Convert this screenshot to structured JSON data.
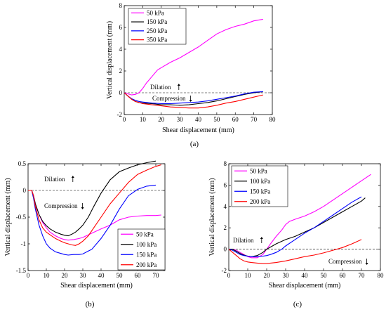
{
  "chart_data": [
    {
      "type": "line",
      "panel_label": "(a)",
      "xlabel": "Shear displacement (mm)",
      "ylabel": "Vertical displacement (mm)",
      "xlim": [
        0,
        80
      ],
      "ylim": [
        -2,
        8
      ],
      "xticks": [
        "0",
        "10",
        "20",
        "30",
        "40",
        "50",
        "60",
        "70",
        "80"
      ],
      "yticks": [
        "-2",
        "0",
        "2",
        "4",
        "6",
        "8"
      ],
      "zero_line": "dashed",
      "legend_position": "top-left",
      "annotations": [
        {
          "text": "Dilation",
          "arrow": "up",
          "at": [
            38,
            0.6
          ]
        },
        {
          "text": "Compression",
          "arrow": "down",
          "at": [
            38,
            -0.55
          ]
        }
      ],
      "series": [
        {
          "name": "50 kPa",
          "color": "#ff00ff",
          "x": [
            0,
            2,
            4,
            6,
            8,
            10,
            12,
            15,
            18,
            20,
            25,
            30,
            35,
            40,
            45,
            50,
            55,
            60,
            65,
            70,
            75
          ],
          "y": [
            0,
            -0.1,
            -0.2,
            -0.15,
            0,
            0.4,
            0.9,
            1.5,
            2.1,
            2.3,
            2.8,
            3.2,
            3.7,
            4.2,
            4.8,
            5.4,
            5.8,
            6.1,
            6.3,
            6.6,
            6.75
          ]
        },
        {
          "name": "150 kPa",
          "color": "#000000",
          "x": [
            0,
            2,
            4,
            6,
            8,
            10,
            15,
            20,
            25,
            30,
            35,
            40,
            45,
            50,
            55,
            60,
            65,
            70,
            75
          ],
          "y": [
            0,
            -0.3,
            -0.6,
            -0.8,
            -0.9,
            -0.95,
            -1.0,
            -1.1,
            -1.1,
            -1.15,
            -1.1,
            -1.0,
            -0.9,
            -0.75,
            -0.55,
            -0.35,
            -0.15,
            0.0,
            0.1
          ]
        },
        {
          "name": "250 kPa",
          "color": "#0000ff",
          "x": [
            0,
            2,
            4,
            6,
            8,
            10,
            15,
            20,
            25,
            30,
            35,
            40,
            45,
            50,
            55,
            60,
            65,
            70,
            75
          ],
          "y": [
            0,
            -0.3,
            -0.55,
            -0.7,
            -0.8,
            -0.85,
            -0.95,
            -1.0,
            -1.0,
            -0.95,
            -0.9,
            -0.85,
            -0.75,
            -0.6,
            -0.45,
            -0.3,
            -0.1,
            0.05,
            0.1
          ]
        },
        {
          "name": "350 kPa",
          "color": "#ff0000",
          "x": [
            0,
            2,
            4,
            6,
            8,
            10,
            15,
            20,
            25,
            30,
            35,
            40,
            45,
            50,
            55,
            60,
            65,
            70,
            75
          ],
          "y": [
            0,
            -0.3,
            -0.6,
            -0.8,
            -0.9,
            -1.0,
            -1.1,
            -1.2,
            -1.3,
            -1.35,
            -1.4,
            -1.4,
            -1.3,
            -1.15,
            -0.95,
            -0.8,
            -0.6,
            -0.4,
            -0.2
          ]
        }
      ]
    },
    {
      "type": "line",
      "panel_label": "(b)",
      "xlabel": "Shear displacement (mm)",
      "ylabel": "Vertical displacement (mm)",
      "xlim": [
        0,
        75
      ],
      "ylim": [
        -1.5,
        0.5
      ],
      "xticks": [
        "0",
        "10",
        "20",
        "30",
        "40",
        "50",
        "60",
        "70"
      ],
      "yticks": [
        "-1.5",
        "-1",
        "-0.5",
        "0",
        "0.5"
      ],
      "zero_line": "dashed",
      "legend_position": "bottom-right",
      "annotations": [
        {
          "text": "Dilation",
          "arrow": "up",
          "at": [
            5,
            0.2
          ]
        },
        {
          "text": "Compression",
          "arrow": "down",
          "at": [
            5,
            -0.2
          ]
        }
      ],
      "series": [
        {
          "name": "50 kPa",
          "color": "#ff00ff",
          "x": [
            0,
            1,
            2,
            3,
            4,
            6,
            8,
            10,
            12,
            15,
            18,
            20,
            22,
            25,
            28,
            30,
            35,
            40,
            45,
            50,
            55,
            60,
            65,
            70,
            73
          ],
          "y": [
            0,
            0,
            0,
            -0.1,
            -0.25,
            -0.45,
            -0.6,
            -0.7,
            -0.78,
            -0.85,
            -0.9,
            -0.92,
            -0.93,
            -0.92,
            -0.9,
            -0.88,
            -0.8,
            -0.72,
            -0.65,
            -0.55,
            -0.5,
            -0.48,
            -0.47,
            -0.47,
            -0.46
          ]
        },
        {
          "name": "100 kPa",
          "color": "#000000",
          "x": [
            0,
            1,
            2,
            3,
            4,
            6,
            8,
            10,
            12,
            15,
            18,
            20,
            22,
            24,
            26,
            28,
            30,
            33,
            36,
            40,
            45,
            50,
            55,
            60,
            65,
            70
          ],
          "y": [
            0,
            0,
            0,
            -0.1,
            -0.25,
            -0.45,
            -0.58,
            -0.66,
            -0.72,
            -0.78,
            -0.82,
            -0.84,
            -0.85,
            -0.82,
            -0.78,
            -0.72,
            -0.65,
            -0.5,
            -0.3,
            -0.05,
            0.2,
            0.35,
            0.42,
            0.48,
            0.52,
            0.55
          ]
        },
        {
          "name": "150 kPa",
          "color": "#0000ff",
          "x": [
            0,
            1,
            2,
            3,
            4,
            6,
            8,
            10,
            12,
            15,
            18,
            20,
            22,
            25,
            28,
            30,
            35,
            40,
            45,
            50,
            55,
            60,
            65,
            70
          ],
          "y": [
            0,
            0,
            0,
            -0.15,
            -0.35,
            -0.65,
            -0.85,
            -1.0,
            -1.08,
            -1.15,
            -1.18,
            -1.2,
            -1.21,
            -1.2,
            -1.2,
            -1.19,
            -1.1,
            -0.9,
            -0.65,
            -0.35,
            -0.1,
            0.02,
            0.08,
            0.1
          ]
        },
        {
          "name": "200 kPa",
          "color": "#ff0000",
          "x": [
            0,
            1,
            2,
            3,
            4,
            6,
            8,
            10,
            12,
            15,
            18,
            20,
            22,
            24,
            26,
            28,
            30,
            33,
            36,
            40,
            45,
            50,
            55,
            60,
            65,
            70,
            73
          ],
          "y": [
            0,
            0,
            0,
            -0.1,
            -0.3,
            -0.55,
            -0.7,
            -0.78,
            -0.83,
            -0.9,
            -0.95,
            -0.98,
            -1.0,
            -1.02,
            -1.03,
            -1.0,
            -0.95,
            -0.85,
            -0.7,
            -0.5,
            -0.25,
            -0.05,
            0.15,
            0.3,
            0.38,
            0.45,
            0.48
          ]
        }
      ]
    },
    {
      "type": "line",
      "panel_label": "(c)",
      "xlabel": "Shear displacement (mm)",
      "ylabel": "Vertical displacement (mm)",
      "xlim": [
        0,
        80
      ],
      "ylim": [
        -2,
        8
      ],
      "xticks": [
        "0",
        "10",
        "20",
        "30",
        "40",
        "50",
        "60",
        "70",
        "80"
      ],
      "yticks": [
        "-2",
        "0",
        "2",
        "4",
        "6",
        "8"
      ],
      "zero_line": "dashed",
      "legend_position": "top-left",
      "annotations": [
        {
          "text": "Dilation",
          "arrow": "up",
          "at": [
            0,
            0.5
          ]
        },
        {
          "text": "Compression",
          "arrow": "down",
          "at": [
            60,
            -1.0
          ]
        }
      ],
      "series": [
        {
          "name": "50 kPa",
          "color": "#ff00ff",
          "x": [
            0,
            2,
            4,
            6,
            8,
            10,
            12,
            15,
            18,
            20,
            22,
            25,
            28,
            30,
            32,
            35,
            40,
            45,
            50,
            55,
            60,
            65,
            70,
            75
          ],
          "y": [
            0,
            0,
            -0.1,
            -0.3,
            -0.5,
            -0.7,
            -0.8,
            -0.8,
            -0.5,
            0.0,
            0.5,
            1.2,
            1.8,
            2.3,
            2.6,
            2.8,
            3.1,
            3.5,
            4.0,
            4.6,
            5.2,
            5.8,
            6.4,
            7.0
          ]
        },
        {
          "name": "100 kPa",
          "color": "#000000",
          "x": [
            0,
            2,
            4,
            6,
            8,
            10,
            12,
            15,
            18,
            20,
            22,
            25,
            30,
            35,
            40,
            45,
            50,
            55,
            60,
            65,
            70,
            72
          ],
          "y": [
            0,
            0,
            -0.2,
            -0.4,
            -0.55,
            -0.65,
            -0.7,
            -0.6,
            -0.3,
            0,
            0.2,
            0.5,
            0.9,
            1.2,
            1.6,
            2.0,
            2.5,
            3.0,
            3.5,
            4.0,
            4.5,
            4.8
          ]
        },
        {
          "name": "150 kPa",
          "color": "#0000ff",
          "x": [
            0,
            2,
            4,
            6,
            8,
            10,
            12,
            15,
            18,
            20,
            22,
            25,
            28,
            30,
            35,
            40,
            45,
            50,
            55,
            60,
            65,
            70
          ],
          "y": [
            0,
            -0.1,
            -0.3,
            -0.5,
            -0.6,
            -0.65,
            -0.7,
            -0.7,
            -0.65,
            -0.6,
            -0.5,
            -0.3,
            0,
            0.3,
            0.9,
            1.5,
            2.0,
            2.6,
            3.2,
            3.8,
            4.4,
            4.9
          ]
        },
        {
          "name": "200 kPa",
          "color": "#ff0000",
          "x": [
            0,
            2,
            4,
            6,
            8,
            10,
            12,
            15,
            18,
            20,
            22,
            25,
            30,
            35,
            40,
            45,
            50,
            55,
            60,
            65,
            70
          ],
          "y": [
            0,
            -0.3,
            -0.6,
            -0.9,
            -1.1,
            -1.2,
            -1.25,
            -1.3,
            -1.35,
            -1.35,
            -1.3,
            -1.25,
            -1.1,
            -0.9,
            -0.7,
            -0.55,
            -0.35,
            -0.1,
            0.15,
            0.5,
            0.9
          ]
        }
      ]
    }
  ]
}
